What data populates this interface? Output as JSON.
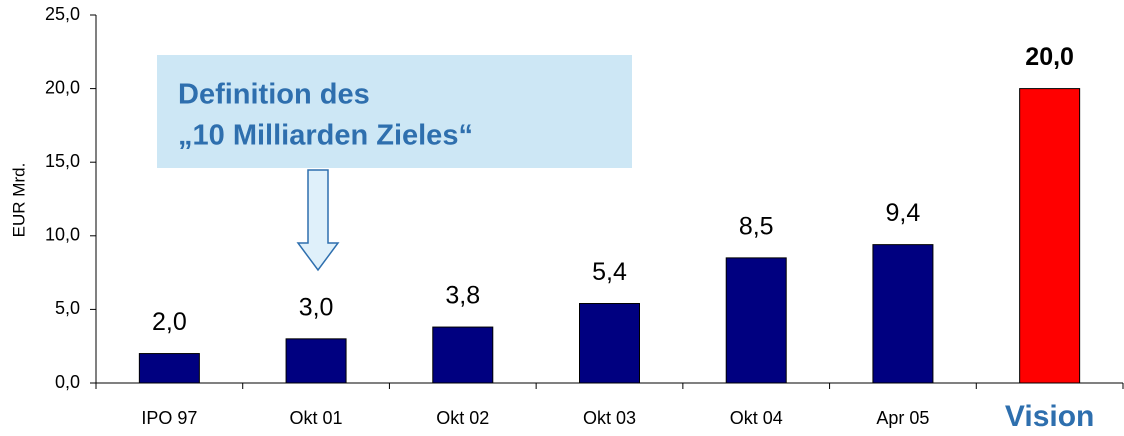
{
  "chart_data": {
    "type": "bar",
    "y_label": "EUR Mrd.",
    "categories": [
      "IPO 97",
      "Okt 01",
      "Okt 02",
      "Okt 03",
      "Okt 04",
      "Apr 05",
      "Vision"
    ],
    "values": [
      2.0,
      3.0,
      3.8,
      5.4,
      8.5,
      9.4,
      20.0
    ],
    "value_labels": [
      "2,0",
      "3,0",
      "3,8",
      "5,4",
      "8,5",
      "9,4",
      "20,0"
    ],
    "colors": [
      "#000080",
      "#000080",
      "#000080",
      "#000080",
      "#000080",
      "#000080",
      "#ff0000"
    ],
    "ylim": [
      0,
      25
    ],
    "yticks": [
      {
        "value": 0,
        "label": "0,0"
      },
      {
        "value": 5,
        "label": "5,0"
      },
      {
        "value": 10,
        "label": "10,0"
      },
      {
        "value": 15,
        "label": "15,0"
      },
      {
        "value": 20,
        "label": "20,0"
      },
      {
        "value": 25,
        "label": "25,0"
      }
    ],
    "annotation": [
      "Definition des",
      "„10 Milliarden Zieles“"
    ]
  }
}
